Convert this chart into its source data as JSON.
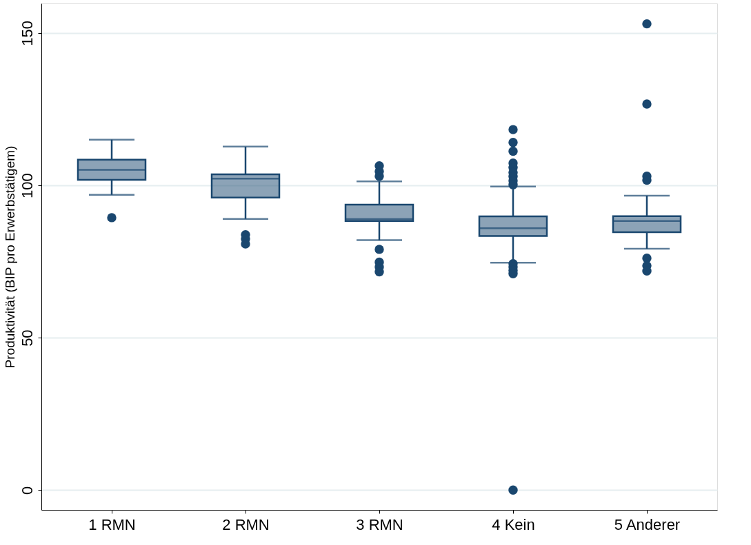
{
  "chart_data": {
    "type": "box",
    "ylabel": "Produktivität (BIP pro Erwerbstätigem)",
    "categories": [
      "1 RMN",
      "2 RMN",
      "3 RMN",
      "4 Kein",
      "5 Anderer"
    ],
    "series": [
      {
        "color": "#1a476f",
        "boxes": [
          {
            "low": 96.9,
            "q1": 101.8,
            "median": 105.1,
            "q3": 108.4,
            "high": 115.0,
            "outliers": [
              89.4
            ]
          },
          {
            "low": 89.0,
            "q1": 96.0,
            "median": 102.2,
            "q3": 103.6,
            "high": 112.7,
            "outliers": [
              83.8,
              82.4,
              80.8
            ]
          },
          {
            "low": 82.0,
            "q1": 88.3,
            "median": 88.9,
            "q3": 93.7,
            "high": 101.3,
            "outliers": [
              106.4,
              104.6,
              103.0,
              79.0,
              74.8,
              73.2,
              71.6
            ]
          },
          {
            "low": 74.6,
            "q1": 83.4,
            "median": 85.9,
            "q3": 89.8,
            "high": 99.6,
            "outliers": [
              118.3,
              114.1,
              111.2,
              107.3,
              105.8,
              104.2,
              102.9,
              101.5,
              100.2,
              74.3,
              73.2,
              72.1,
              71.0,
              0
            ]
          },
          {
            "low": 79.2,
            "q1": 84.6,
            "median": 88.3,
            "q3": 89.9,
            "high": 96.6,
            "outliers": [
              153.0,
              126.7,
              103.0,
              101.7,
              76.1,
              73.6,
              71.9
            ]
          }
        ]
      }
    ],
    "ylim": [
      -6.5,
      159.7
    ],
    "yticks": [
      0,
      50,
      100,
      150
    ],
    "grid": "y"
  }
}
